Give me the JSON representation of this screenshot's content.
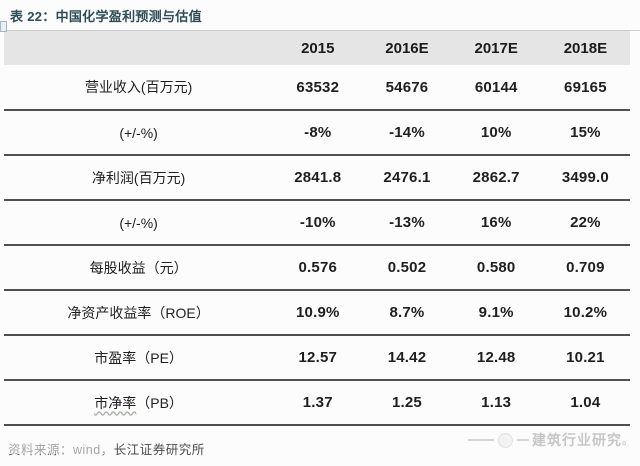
{
  "title": "表 22：中国化学盈利预测与估值",
  "table": {
    "header": [
      "2015",
      "2016E",
      "2017E",
      "2018E"
    ],
    "rows": [
      {
        "label": "营业收入(百万元)",
        "values": [
          "63532",
          "54676",
          "60144",
          "69165"
        ]
      },
      {
        "label": "(+/-%)",
        "values": [
          "-8%",
          "-14%",
          "10%",
          "15%"
        ]
      },
      {
        "label": "净利润(百万元)",
        "values": [
          "2841.8",
          "2476.1",
          "2862.7",
          "3499.0"
        ]
      },
      {
        "label": "(+/-%)",
        "values": [
          "-10%",
          "-13%",
          "16%",
          "22%"
        ]
      },
      {
        "label": "每股收益（元）",
        "values": [
          "0.576",
          "0.502",
          "0.580",
          "0.709"
        ]
      },
      {
        "label": "净资产收益率（ROE）",
        "values": [
          "10.9%",
          "8.7%",
          "9.1%",
          "10.2%"
        ]
      },
      {
        "label": "市盈率（PE）",
        "values": [
          "12.57",
          "14.42",
          "12.48",
          "10.21"
        ]
      },
      {
        "label_wavy": "市净率",
        "label_rest": "（PB）",
        "values": [
          "1.37",
          "1.25",
          "1.13",
          "1.04"
        ]
      }
    ]
  },
  "footer": {
    "source": "资料来源：wind，长江证券研究所"
  },
  "watermark": {
    "text": "建筑行业研究",
    "suffix": "。"
  },
  "colors": {
    "title_text": "#2e4d57",
    "header_band_bg": "#e5e5e5",
    "row_separator": "#4f4f4f",
    "watermark_text": "#c6c6c6"
  }
}
